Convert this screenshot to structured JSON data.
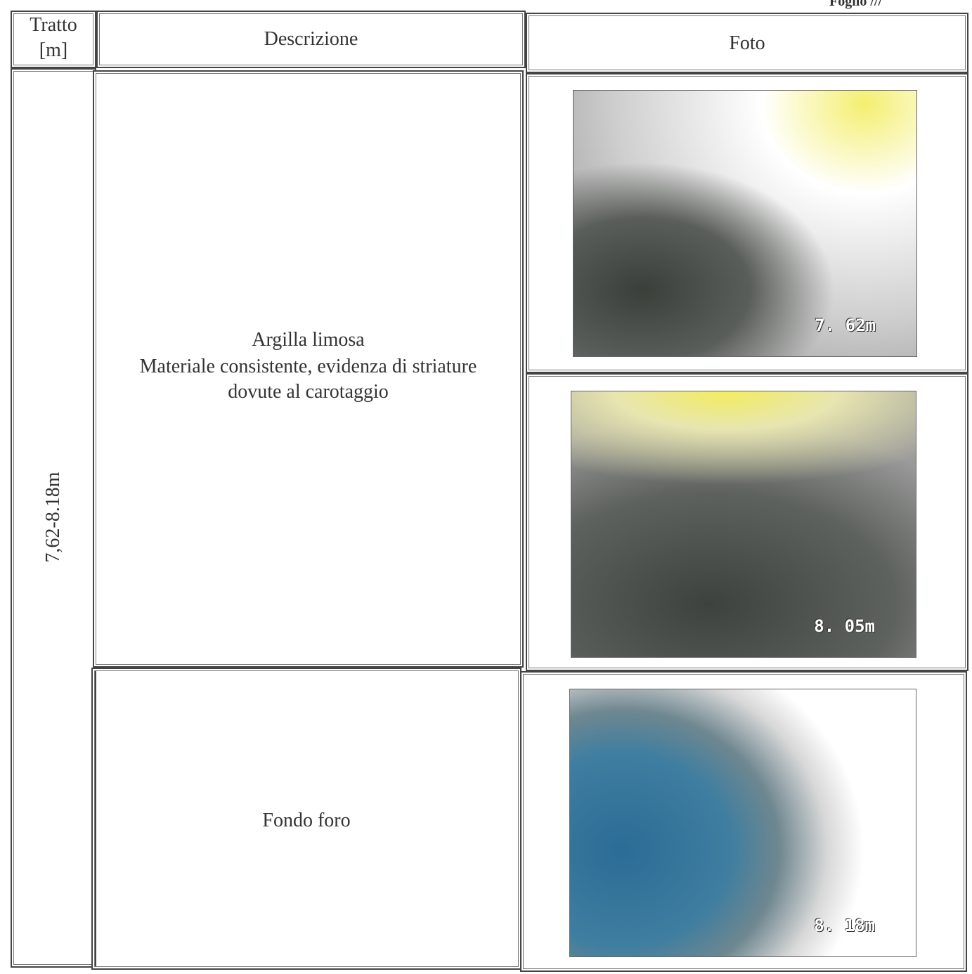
{
  "header": {
    "sheet": "Foglio ///"
  },
  "table": {
    "columns": [
      [
        "Tratto",
        "[m]"
      ],
      "Descrizione",
      "Foto"
    ],
    "interval": "7,62-8.18m",
    "descriptions": [
      [
        "Argilla limosa",
        "Materiale consistente, evidenza di striature",
        "dovute al carotaggio"
      ],
      [
        "Fondo foro"
      ]
    ],
    "photos": [
      "7. 62m",
      "8. 05m",
      "8. 18m"
    ]
  }
}
